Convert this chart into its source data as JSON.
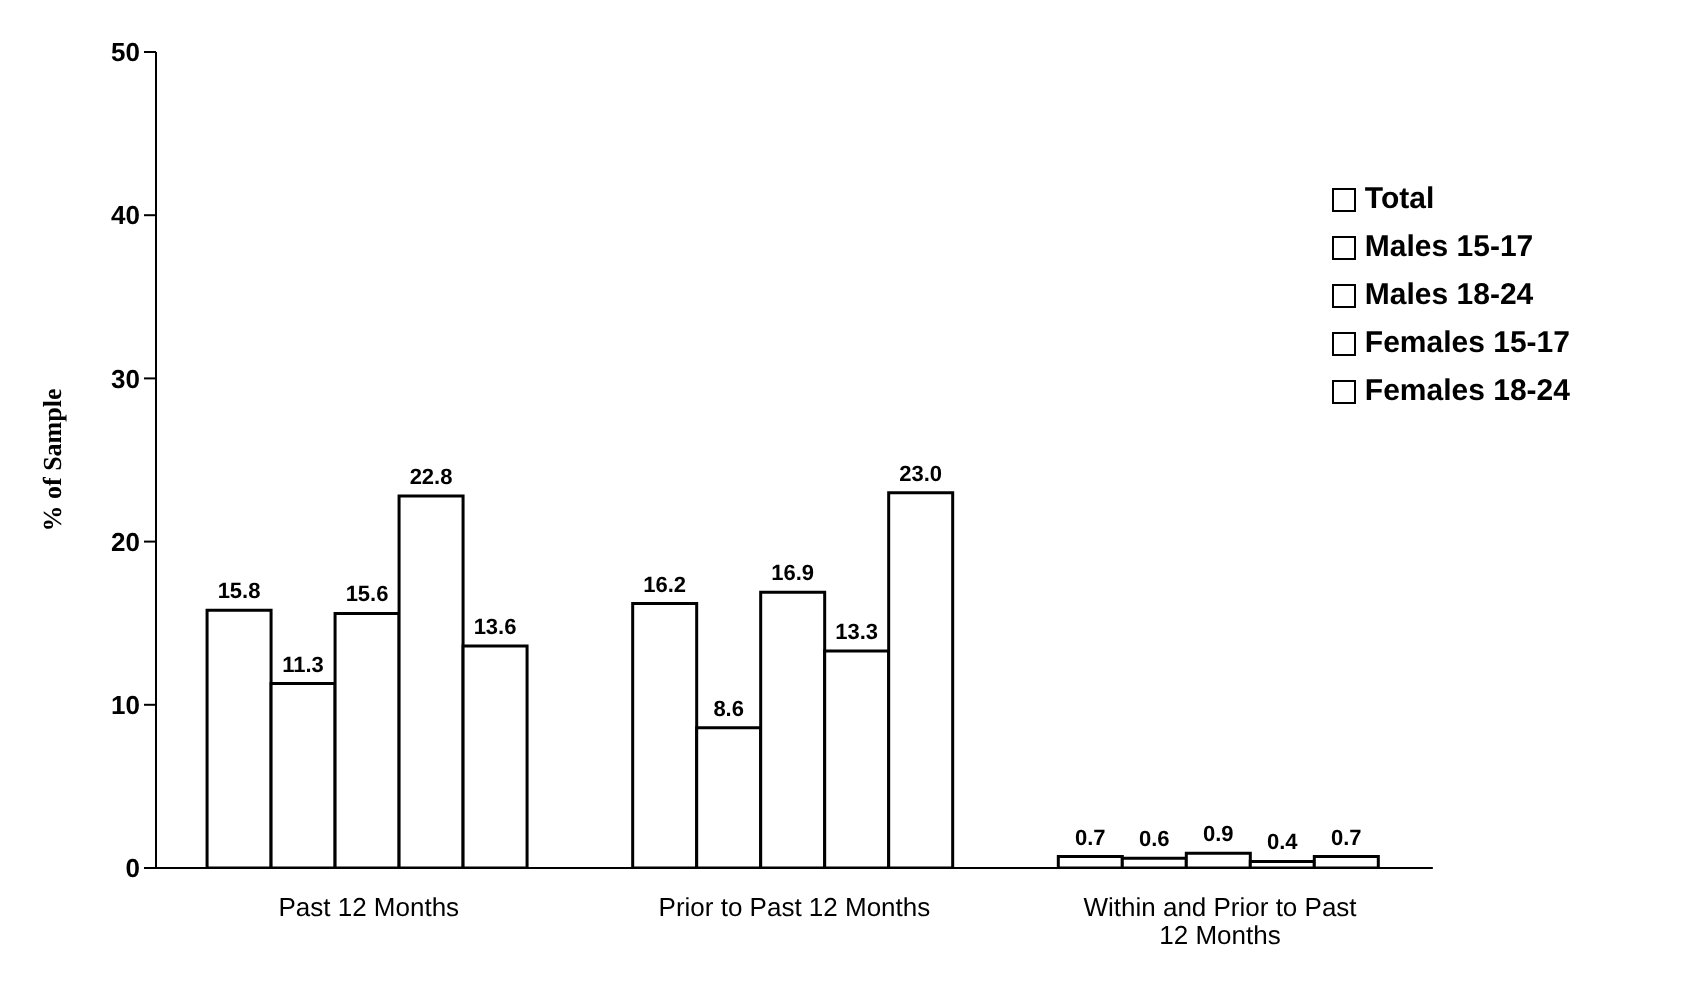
{
  "chart_data": {
    "type": "bar",
    "ylabel": "% of Sample",
    "categories": [
      "Past 12 Months",
      "Prior to Past 12 Months",
      "Within and Prior to Past 12 Months"
    ],
    "series": [
      {
        "name": "Total",
        "color": "#ffffff",
        "values": [
          15.8,
          16.2,
          0.7
        ],
        "value_labels": [
          "15.8",
          "16.2",
          "0.7"
        ]
      },
      {
        "name": "Males 15-17",
        "color": "#ffffff",
        "values": [
          11.3,
          8.6,
          0.6
        ],
        "value_labels": [
          "11.3",
          "8.6",
          "0.6"
        ]
      },
      {
        "name": "Males 18-24",
        "color": "#ffffff",
        "values": [
          15.6,
          16.9,
          0.9
        ],
        "value_labels": [
          "15.6",
          "16.9",
          "0.9"
        ]
      },
      {
        "name": "Females 15-17",
        "color": "#ffffff",
        "values": [
          22.8,
          13.3,
          0.4
        ],
        "value_labels": [
          "22.8",
          "13.3",
          "0.4"
        ]
      },
      {
        "name": "Females 18-24",
        "color": "#ffffff",
        "values": [
          13.6,
          23.0,
          0.7
        ],
        "value_labels": [
          "13.6",
          "23.0",
          "0.7"
        ]
      }
    ],
    "ylim": [
      0,
      50
    ],
    "yticks": [
      0,
      10,
      20,
      30,
      40,
      50
    ],
    "grid": false,
    "legend": "top right"
  }
}
